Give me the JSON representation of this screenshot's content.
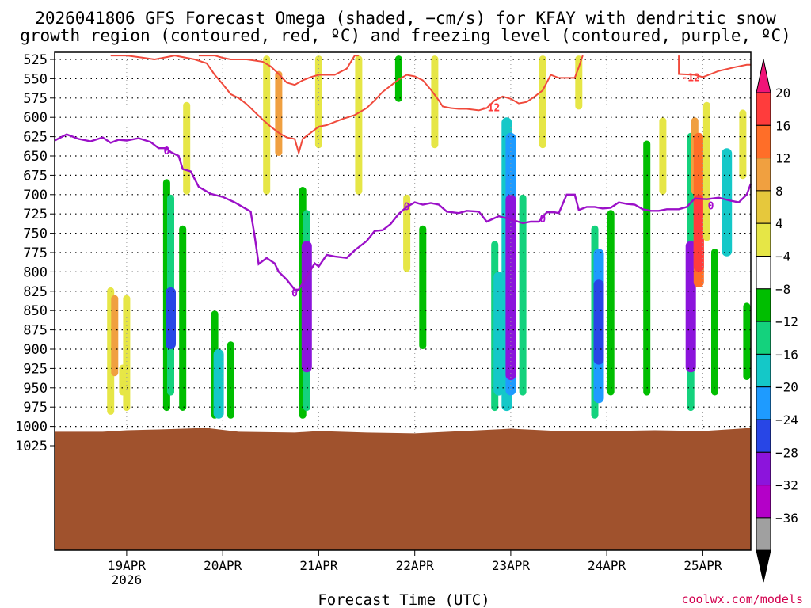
{
  "chart_data": {
    "type": "heatmap",
    "title_line1": "2026041806 GFS Forecast Omega (shaded, −cm/s) for KFAY with dendritic snow",
    "title_line2": "growth region (contoured, red, ºC) and freezing level (contoured, purple, ºC)",
    "xlabel": "Forecast Time (UTC)",
    "credit": "coolwx.com/models",
    "x_range_hours": [
      -18,
      156
    ],
    "x_ticks": [
      {
        "hour": 0,
        "label": "19APR",
        "sublabel": "2026"
      },
      {
        "hour": 24,
        "label": "20APR",
        "sublabel": ""
      },
      {
        "hour": 48,
        "label": "21APR",
        "sublabel": ""
      },
      {
        "hour": 72,
        "label": "22APR",
        "sublabel": ""
      },
      {
        "hour": 96,
        "label": "23APR",
        "sublabel": ""
      },
      {
        "hour": 120,
        "label": "24APR",
        "sublabel": ""
      },
      {
        "hour": 144,
        "label": "25APR",
        "sublabel": ""
      }
    ],
    "y_levels_hpa": [
      525,
      550,
      575,
      600,
      625,
      650,
      675,
      700,
      725,
      750,
      775,
      800,
      825,
      850,
      875,
      900,
      925,
      950,
      975,
      1000,
      1025
    ],
    "colorbar": {
      "labels": [
        "20",
        "16",
        "12",
        "8",
        "4",
        "−4",
        "−8",
        "−12",
        "−16",
        "−20",
        "−24",
        "−28",
        "−32",
        "−36"
      ],
      "colors": [
        "#f01478",
        "#ff3c3c",
        "#ff6e28",
        "#f0a040",
        "#e6c83c",
        "#e6e646",
        "#ffffff",
        "#00be00",
        "#14d27d",
        "#14c8c8",
        "#1e9bff",
        "#2846e6",
        "#8c14dc",
        "#b400c8",
        "#a0a0a0",
        "#000000"
      ]
    },
    "freezing_level_label": "0",
    "dgz_label": "-12",
    "freezing_level": {
      "name": "0 °C freezing level (hPa)",
      "points": [
        [
          -18,
          630
        ],
        [
          -15,
          622
        ],
        [
          -12,
          628
        ],
        [
          -9,
          631
        ],
        [
          -6,
          626
        ],
        [
          -4,
          633
        ],
        [
          -2,
          629
        ],
        [
          0,
          630
        ],
        [
          3,
          627
        ],
        [
          6,
          632
        ],
        [
          8,
          640
        ],
        [
          10,
          640
        ],
        [
          11,
          645
        ],
        [
          13,
          650
        ],
        [
          14,
          667
        ],
        [
          16,
          670
        ],
        [
          18,
          690
        ],
        [
          21,
          699
        ],
        [
          24,
          703
        ],
        [
          27,
          710
        ],
        [
          29,
          716
        ],
        [
          31,
          722
        ],
        [
          32,
          754
        ],
        [
          33,
          790
        ],
        [
          35,
          782
        ],
        [
          37,
          789
        ],
        [
          38,
          800
        ],
        [
          40,
          810
        ],
        [
          42,
          823
        ],
        [
          43,
          823
        ],
        [
          45,
          806
        ],
        [
          47,
          789
        ],
        [
          48,
          793
        ],
        [
          50,
          778
        ],
        [
          52,
          780
        ],
        [
          55,
          782
        ],
        [
          57,
          772
        ],
        [
          60,
          760
        ],
        [
          62,
          747
        ],
        [
          64,
          746
        ],
        [
          66,
          738
        ],
        [
          68,
          725
        ],
        [
          70,
          716
        ],
        [
          72,
          710
        ],
        [
          74,
          713
        ],
        [
          76,
          711
        ],
        [
          78,
          713
        ],
        [
          80,
          722
        ],
        [
          83,
          724
        ],
        [
          85,
          721
        ],
        [
          88,
          722
        ],
        [
          90,
          735
        ],
        [
          93,
          728
        ],
        [
          96,
          732
        ],
        [
          99,
          737
        ],
        [
          101,
          735
        ],
        [
          103,
          735
        ],
        [
          105,
          723
        ],
        [
          107,
          723
        ],
        [
          108,
          724
        ],
        [
          110,
          700
        ],
        [
          112,
          700
        ],
        [
          113,
          720
        ],
        [
          115,
          716
        ],
        [
          117,
          716
        ],
        [
          119,
          718
        ],
        [
          121,
          717
        ],
        [
          123,
          710
        ],
        [
          125,
          712
        ],
        [
          127,
          713
        ],
        [
          129,
          719
        ],
        [
          131,
          721
        ],
        [
          133,
          721
        ],
        [
          135,
          719
        ],
        [
          138,
          719
        ],
        [
          140,
          716
        ],
        [
          142,
          705
        ],
        [
          145,
          706
        ],
        [
          148,
          704
        ],
        [
          151,
          708
        ],
        [
          153,
          710
        ],
        [
          155,
          700
        ],
        [
          156,
          686
        ]
      ]
    },
    "dgz_contours": [
      {
        "name": "-12 °C (upper)",
        "points": [
          [
            -4,
            512
          ],
          [
            0,
            518
          ],
          [
            3,
            522
          ],
          [
            7,
            525
          ],
          [
            10,
            522
          ],
          [
            12,
            520
          ],
          [
            17,
            525
          ],
          [
            20,
            530
          ],
          [
            22,
            545
          ],
          [
            24,
            557
          ],
          [
            26,
            570
          ],
          [
            28,
            575
          ],
          [
            30,
            583
          ],
          [
            32,
            593
          ],
          [
            34,
            603
          ],
          [
            36,
            612
          ],
          [
            38,
            620
          ],
          [
            40,
            626
          ],
          [
            42,
            628
          ],
          [
            43,
            646
          ],
          [
            44,
            628
          ],
          [
            46,
            620
          ],
          [
            48,
            612
          ],
          [
            50,
            610
          ],
          [
            52,
            606
          ],
          [
            54,
            602
          ],
          [
            57,
            597
          ],
          [
            60,
            588
          ],
          [
            62,
            578
          ],
          [
            64,
            567
          ],
          [
            66,
            559
          ],
          [
            68,
            551
          ],
          [
            70,
            545
          ],
          [
            72,
            547
          ],
          [
            74,
            552
          ],
          [
            76,
            564
          ],
          [
            78,
            578
          ],
          [
            79,
            586
          ],
          [
            81,
            588
          ],
          [
            83,
            589
          ],
          [
            85,
            589
          ],
          [
            88,
            591
          ],
          [
            90,
            588
          ],
          [
            92,
            578
          ],
          [
            94,
            573
          ],
          [
            96,
            576
          ],
          [
            98,
            582
          ],
          [
            100,
            580
          ],
          [
            102,
            573
          ],
          [
            104,
            565
          ],
          [
            106,
            545
          ],
          [
            108,
            549
          ],
          [
            112,
            549
          ],
          [
            113,
            535
          ],
          [
            114,
            515
          ]
        ]
      },
      {
        "name": "-12 °C (upper 2)",
        "points": [
          [
            18,
            505
          ],
          [
            22,
            520
          ],
          [
            24,
            523
          ],
          [
            26,
            525
          ],
          [
            30,
            525
          ],
          [
            34,
            528
          ],
          [
            36,
            534
          ],
          [
            38,
            544
          ],
          [
            40,
            555
          ],
          [
            42,
            558
          ],
          [
            44,
            552
          ],
          [
            46,
            548
          ],
          [
            48,
            545
          ],
          [
            52,
            545
          ],
          [
            55,
            537
          ],
          [
            57,
            520
          ],
          [
            58,
            505
          ]
        ]
      },
      {
        "name": "-12 °C (right)",
        "points": [
          [
            138,
            515
          ],
          [
            138,
            544
          ],
          [
            142,
            545
          ],
          [
            144,
            548
          ],
          [
            146,
            544
          ],
          [
            148,
            540
          ],
          [
            152,
            535
          ],
          [
            155,
            532
          ],
          [
            156,
            532
          ]
        ]
      }
    ],
    "omega_cells": [
      {
        "x": -4,
        "p0": 820,
        "p1": 985,
        "v": 5
      },
      {
        "x": -3,
        "p0": 830,
        "p1": 935,
        "v": 9
      },
      {
        "x": -1,
        "p0": 920,
        "p1": 960,
        "v": 5
      },
      {
        "x": 0,
        "p0": 830,
        "p1": 980,
        "v": 5
      },
      {
        "x": 10,
        "p0": 680,
        "p1": 980,
        "v": -6
      },
      {
        "x": 11,
        "p0": 700,
        "p1": 960,
        "v": -9
      },
      {
        "x": 11,
        "p0": 820,
        "p1": 900,
        "v": -22
      },
      {
        "x": 14,
        "p0": 740,
        "p1": 980,
        "v": -6
      },
      {
        "x": 15,
        "p0": 580,
        "p1": 700,
        "v": 6
      },
      {
        "x": 22,
        "p0": 850,
        "p1": 990,
        "v": -6
      },
      {
        "x": 23,
        "p0": 900,
        "p1": 990,
        "v": -14
      },
      {
        "x": 26,
        "p0": 890,
        "p1": 990,
        "v": -6
      },
      {
        "x": 35,
        "p0": 520,
        "p1": 700,
        "v": 6
      },
      {
        "x": 38,
        "p0": 540,
        "p1": 650,
        "v": 10
      },
      {
        "x": 44,
        "p0": 690,
        "p1": 990,
        "v": -6
      },
      {
        "x": 45,
        "p0": 720,
        "p1": 980,
        "v": -10
      },
      {
        "x": 45,
        "p0": 760,
        "p1": 930,
        "v": -24
      },
      {
        "x": 48,
        "p0": 520,
        "p1": 640,
        "v": 5
      },
      {
        "x": 58,
        "p0": 520,
        "p1": 700,
        "v": 5
      },
      {
        "x": 68,
        "p0": 520,
        "p1": 580,
        "v": -6
      },
      {
        "x": 70,
        "p0": 700,
        "p1": 800,
        "v": 5
      },
      {
        "x": 74,
        "p0": 740,
        "p1": 900,
        "v": -6
      },
      {
        "x": 77,
        "p0": 520,
        "p1": 640,
        "v": 6
      },
      {
        "x": 92,
        "p0": 760,
        "p1": 980,
        "v": -8
      },
      {
        "x": 93,
        "p0": 800,
        "p1": 960,
        "v": -15
      },
      {
        "x": 95,
        "p0": 600,
        "p1": 980,
        "v": -12
      },
      {
        "x": 96,
        "p0": 620,
        "p1": 960,
        "v": -18
      },
      {
        "x": 96,
        "p0": 700,
        "p1": 940,
        "v": -26
      },
      {
        "x": 99,
        "p0": 700,
        "p1": 960,
        "v": -10
      },
      {
        "x": 104,
        "p0": 520,
        "p1": 640,
        "v": 5
      },
      {
        "x": 113,
        "p0": 520,
        "p1": 590,
        "v": 5
      },
      {
        "x": 117,
        "p0": 740,
        "p1": 990,
        "v": -8
      },
      {
        "x": 118,
        "p0": 770,
        "p1": 970,
        "v": -16
      },
      {
        "x": 118,
        "p0": 810,
        "p1": 920,
        "v": -22
      },
      {
        "x": 121,
        "p0": 720,
        "p1": 960,
        "v": -6
      },
      {
        "x": 130,
        "p0": 630,
        "p1": 960,
        "v": -6
      },
      {
        "x": 134,
        "p0": 600,
        "p1": 700,
        "v": 5
      },
      {
        "x": 141,
        "p0": 620,
        "p1": 980,
        "v": -10
      },
      {
        "x": 141,
        "p0": 760,
        "p1": 930,
        "v": -24
      },
      {
        "x": 142,
        "p0": 600,
        "p1": 700,
        "v": 10
      },
      {
        "x": 143,
        "p0": 620,
        "p1": 820,
        "v": 14
      },
      {
        "x": 143,
        "p0": 700,
        "p1": 800,
        "v": 17
      },
      {
        "x": 145,
        "p0": 580,
        "p1": 760,
        "v": 7
      },
      {
        "x": 147,
        "p0": 770,
        "p1": 960,
        "v": -6
      },
      {
        "x": 150,
        "p0": 640,
        "p1": 780,
        "v": -12
      },
      {
        "x": 154,
        "p0": 590,
        "p1": 680,
        "v": 5
      },
      {
        "x": 155,
        "p0": 840,
        "p1": 940,
        "v": -7
      }
    ]
  }
}
